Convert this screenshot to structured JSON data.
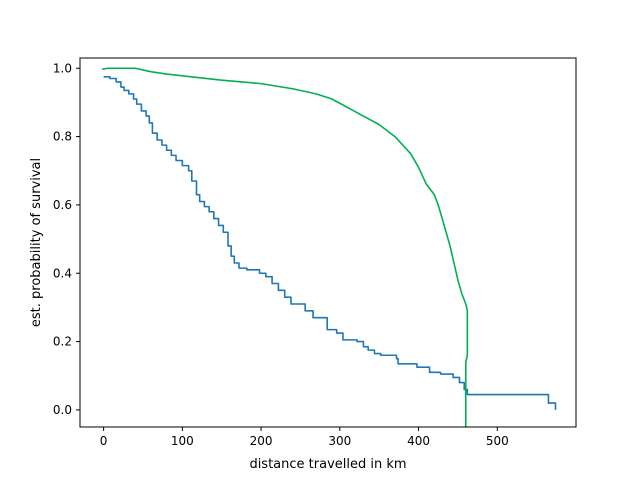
{
  "chart_data": {
    "type": "line",
    "title": "",
    "xlabel": "distance travelled in km",
    "ylabel": "est. probability of survival",
    "xlim": [
      -30,
      600
    ],
    "ylim": [
      -0.05,
      1.03
    ],
    "xticks": [
      0,
      100,
      200,
      300,
      400,
      500
    ],
    "yticks": [
      0.0,
      0.2,
      0.4,
      0.6,
      0.8,
      1.0
    ],
    "xtick_labels": [
      "0",
      "100",
      "200",
      "300",
      "400",
      "500"
    ],
    "ytick_labels": [
      "0.0",
      "0.2",
      "0.4",
      "0.6",
      "0.8",
      "1.0"
    ],
    "grid": false,
    "legend": "none",
    "series": [
      {
        "color": "#1f77b4",
        "style": "step",
        "points": [
          [
            0,
            0.975
          ],
          [
            8,
            0.97
          ],
          [
            16,
            0.96
          ],
          [
            22,
            0.945
          ],
          [
            26,
            0.935
          ],
          [
            32,
            0.925
          ],
          [
            38,
            0.91
          ],
          [
            42,
            0.895
          ],
          [
            48,
            0.875
          ],
          [
            54,
            0.86
          ],
          [
            58,
            0.84
          ],
          [
            62,
            0.81
          ],
          [
            68,
            0.79
          ],
          [
            74,
            0.775
          ],
          [
            80,
            0.76
          ],
          [
            86,
            0.745
          ],
          [
            92,
            0.73
          ],
          [
            100,
            0.715
          ],
          [
            108,
            0.7
          ],
          [
            112,
            0.67
          ],
          [
            118,
            0.63
          ],
          [
            122,
            0.61
          ],
          [
            128,
            0.595
          ],
          [
            134,
            0.58
          ],
          [
            140,
            0.56
          ],
          [
            146,
            0.54
          ],
          [
            152,
            0.52
          ],
          [
            158,
            0.48
          ],
          [
            162,
            0.45
          ],
          [
            166,
            0.43
          ],
          [
            172,
            0.415
          ],
          [
            182,
            0.41
          ],
          [
            198,
            0.4
          ],
          [
            206,
            0.39
          ],
          [
            214,
            0.37
          ],
          [
            222,
            0.35
          ],
          [
            230,
            0.33
          ],
          [
            238,
            0.31
          ],
          [
            256,
            0.29
          ],
          [
            266,
            0.27
          ],
          [
            284,
            0.235
          ],
          [
            296,
            0.225
          ],
          [
            304,
            0.205
          ],
          [
            322,
            0.2
          ],
          [
            330,
            0.185
          ],
          [
            336,
            0.175
          ],
          [
            344,
            0.165
          ],
          [
            352,
            0.16
          ],
          [
            372,
            0.15
          ],
          [
            374,
            0.135
          ],
          [
            398,
            0.125
          ],
          [
            414,
            0.11
          ],
          [
            428,
            0.105
          ],
          [
            444,
            0.095
          ],
          [
            452,
            0.08
          ],
          [
            458,
            0.06
          ],
          [
            462,
            0.045
          ],
          [
            565,
            0.02
          ],
          [
            574,
            0.0
          ]
        ],
        "x_end": 574
      },
      {
        "color": "#00b050",
        "style": "line",
        "points": [
          [
            -2,
            0.997
          ],
          [
            5,
            1.0
          ],
          [
            40,
            1.0
          ],
          [
            60,
            0.99
          ],
          [
            80,
            0.983
          ],
          [
            100,
            0.978
          ],
          [
            150,
            0.965
          ],
          [
            200,
            0.955
          ],
          [
            240,
            0.94
          ],
          [
            270,
            0.925
          ],
          [
            290,
            0.91
          ],
          [
            310,
            0.885
          ],
          [
            330,
            0.86
          ],
          [
            350,
            0.835
          ],
          [
            370,
            0.8
          ],
          [
            390,
            0.75
          ],
          [
            400,
            0.71
          ],
          [
            410,
            0.66
          ],
          [
            420,
            0.63
          ],
          [
            425,
            0.6
          ],
          [
            430,
            0.56
          ],
          [
            435,
            0.52
          ],
          [
            440,
            0.48
          ],
          [
            445,
            0.43
          ],
          [
            450,
            0.38
          ],
          [
            455,
            0.34
          ],
          [
            460,
            0.31
          ],
          [
            462,
            0.29
          ],
          [
            462,
            0.16
          ],
          [
            460,
            0.14
          ],
          [
            460,
            -0.05
          ]
        ]
      }
    ]
  }
}
